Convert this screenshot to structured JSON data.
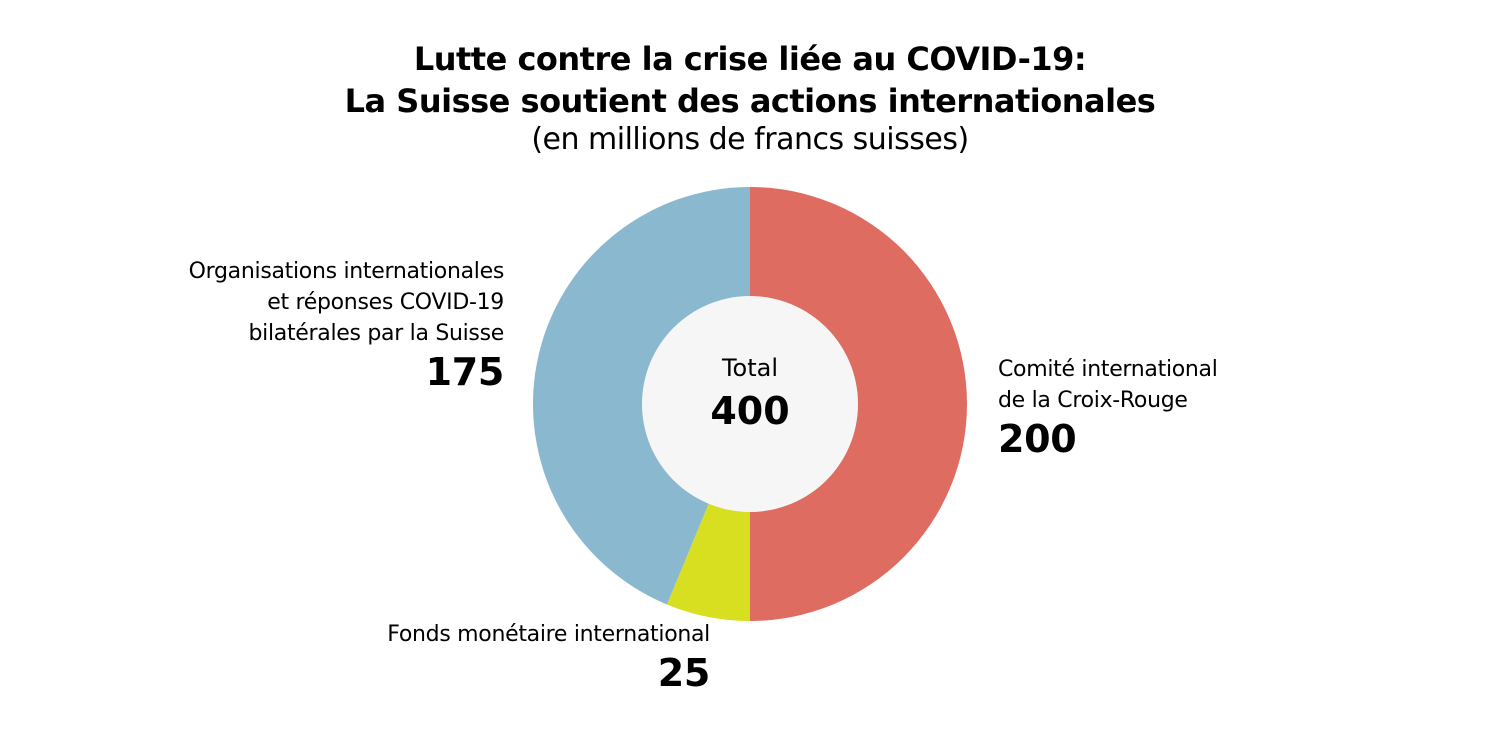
{
  "chart_data": {
    "type": "pie",
    "variant": "donut",
    "title": "Lutte contre la crise liée au COVID-19:",
    "title_line2": "La Suisse soutient des actions internationales",
    "subtitle": "(en millions de francs suisses)",
    "center_label": "Total",
    "center_value": "400",
    "slices": [
      {
        "label_lines": [
          "Comité international",
          "de la Croix-Rouge"
        ],
        "value": 200,
        "value_text": "200",
        "color": "#df6c61"
      },
      {
        "label_lines": [
          "Fonds monétaire international"
        ],
        "value": 25,
        "value_text": "25",
        "color": "#d8df20"
      },
      {
        "label_lines": [
          "Organisations internationales",
          "et réponses COVID-19",
          "bilatérales par la Suisse"
        ],
        "value": 175,
        "value_text": "175",
        "color": "#8ab8cf"
      }
    ],
    "center_color": "#f6f6f6"
  }
}
